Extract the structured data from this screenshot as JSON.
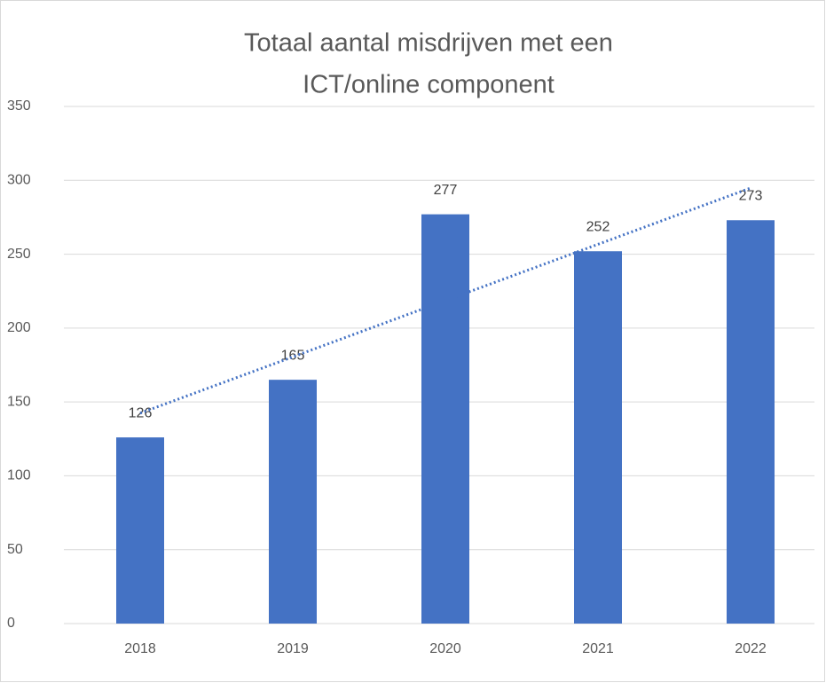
{
  "chart_data": {
    "type": "bar",
    "title": [
      "Totaal aantal misdrijven met een",
      "ICT/online component"
    ],
    "categories": [
      "2018",
      "2019",
      "2020",
      "2021",
      "2022"
    ],
    "values": [
      126,
      165,
      277,
      252,
      273
    ],
    "color": "#4472c4",
    "trendline": {
      "kind": "linear",
      "color": "#4472c4",
      "style": "dotted"
    },
    "ylim": [
      0,
      350
    ],
    "yticks": [
      0,
      50,
      100,
      150,
      200,
      250,
      300,
      350
    ],
    "grid": true
  }
}
